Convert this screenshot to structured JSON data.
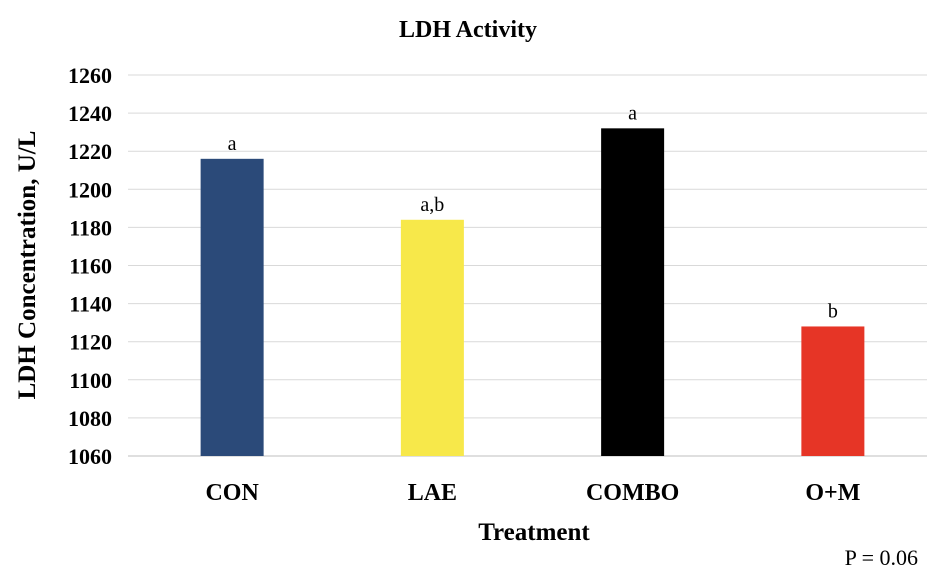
{
  "chart_data": {
    "type": "bar",
    "title": "LDH Activity",
    "xlabel": "Treatment",
    "ylabel": "LDH Concentration, U/L",
    "categories": [
      "CON",
      "LAE",
      "COMBO",
      "O+M"
    ],
    "values": [
      1216,
      1184,
      1232,
      1128
    ],
    "bar_labels": [
      "a",
      "a,b",
      "a",
      "b"
    ],
    "colors": [
      "#2b4a79",
      "#f7e84a",
      "#000000",
      "#e63526"
    ],
    "ylim": [
      1060,
      1260
    ],
    "yticks": [
      1060,
      1080,
      1100,
      1120,
      1140,
      1160,
      1180,
      1200,
      1220,
      1240,
      1260
    ],
    "grid": true,
    "legend": "none"
  },
  "note": "P = 0.06"
}
